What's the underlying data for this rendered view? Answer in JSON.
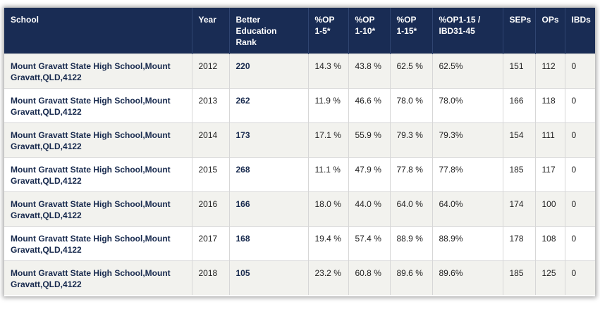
{
  "table": {
    "headers": [
      "School",
      "Year",
      "Better\nEducation\nRank",
      "%OP\n1-5*",
      "%OP\n1-10*",
      "%OP\n1-15*",
      "%OP1-15 /\nIBD31-45",
      "SEPs",
      "OPs",
      "IBDs"
    ],
    "rows": [
      {
        "school": "Mount Gravatt State High School,Mount Gravatt,QLD,4122",
        "year": "2012",
        "rank": "220",
        "op1_5": "14.3 %",
        "op1_10": "43.8 %",
        "op1_15": "62.5 %",
        "op1_15_ibd": "62.5%",
        "seps": "151",
        "ops": "112",
        "ibds": "0"
      },
      {
        "school": "Mount Gravatt State High School,Mount Gravatt,QLD,4122",
        "year": "2013",
        "rank": "262",
        "op1_5": "11.9 %",
        "op1_10": "46.6 %",
        "op1_15": "78.0 %",
        "op1_15_ibd": "78.0%",
        "seps": "166",
        "ops": "118",
        "ibds": "0"
      },
      {
        "school": "Mount Gravatt State High School,Mount Gravatt,QLD,4122",
        "year": "2014",
        "rank": "173",
        "op1_5": "17.1 %",
        "op1_10": "55.9 %",
        "op1_15": "79.3 %",
        "op1_15_ibd": "79.3%",
        "seps": "154",
        "ops": "111",
        "ibds": "0"
      },
      {
        "school": "Mount Gravatt State High School,Mount Gravatt,QLD,4122",
        "year": "2015",
        "rank": "268",
        "op1_5": "11.1 %",
        "op1_10": "47.9 %",
        "op1_15": "77.8 %",
        "op1_15_ibd": "77.8%",
        "seps": "185",
        "ops": "117",
        "ibds": "0"
      },
      {
        "school": "Mount Gravatt State High School,Mount Gravatt,QLD,4122",
        "year": "2016",
        "rank": "166",
        "op1_5": "18.0 %",
        "op1_10": "44.0 %",
        "op1_15": "64.0 %",
        "op1_15_ibd": "64.0%",
        "seps": "174",
        "ops": "100",
        "ibds": "0"
      },
      {
        "school": "Mount Gravatt State High School,Mount Gravatt,QLD,4122",
        "year": "2017",
        "rank": "168",
        "op1_5": "19.4 %",
        "op1_10": "57.4 %",
        "op1_15": "88.9 %",
        "op1_15_ibd": "88.9%",
        "seps": "178",
        "ops": "108",
        "ibds": "0"
      },
      {
        "school": "Mount Gravatt State High School,Mount Gravatt,QLD,4122",
        "year": "2018",
        "rank": "105",
        "op1_5": "23.2 %",
        "op1_10": "60.8 %",
        "op1_15": "89.6 %",
        "op1_15_ibd": "89.6%",
        "seps": "185",
        "ops": "125",
        "ibds": "0"
      }
    ]
  }
}
